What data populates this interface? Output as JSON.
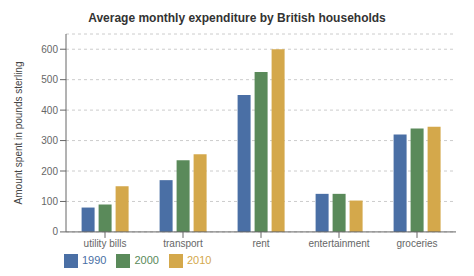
{
  "chart_data": {
    "type": "bar",
    "title": "Average monthly expenditure by British households",
    "categories": [
      "utility bills",
      "transport",
      "rent",
      "entertainment",
      "groceries"
    ],
    "series": [
      {
        "name": "1990",
        "color": "#4a6fa5",
        "values": [
          80,
          170,
          450,
          125,
          320
        ]
      },
      {
        "name": "2000",
        "color": "#5a8a5a",
        "values": [
          90,
          235,
          525,
          125,
          340
        ]
      },
      {
        "name": "2010",
        "color": "#d4a84b",
        "values": [
          150,
          255,
          600,
          103,
          345
        ]
      }
    ],
    "ylabel": "Amount spent in pounds sterling",
    "ylim": [
      0,
      650
    ],
    "yticks": [
      0,
      100,
      200,
      300,
      400,
      500,
      600
    ],
    "grid": true,
    "legend": "bottom"
  }
}
